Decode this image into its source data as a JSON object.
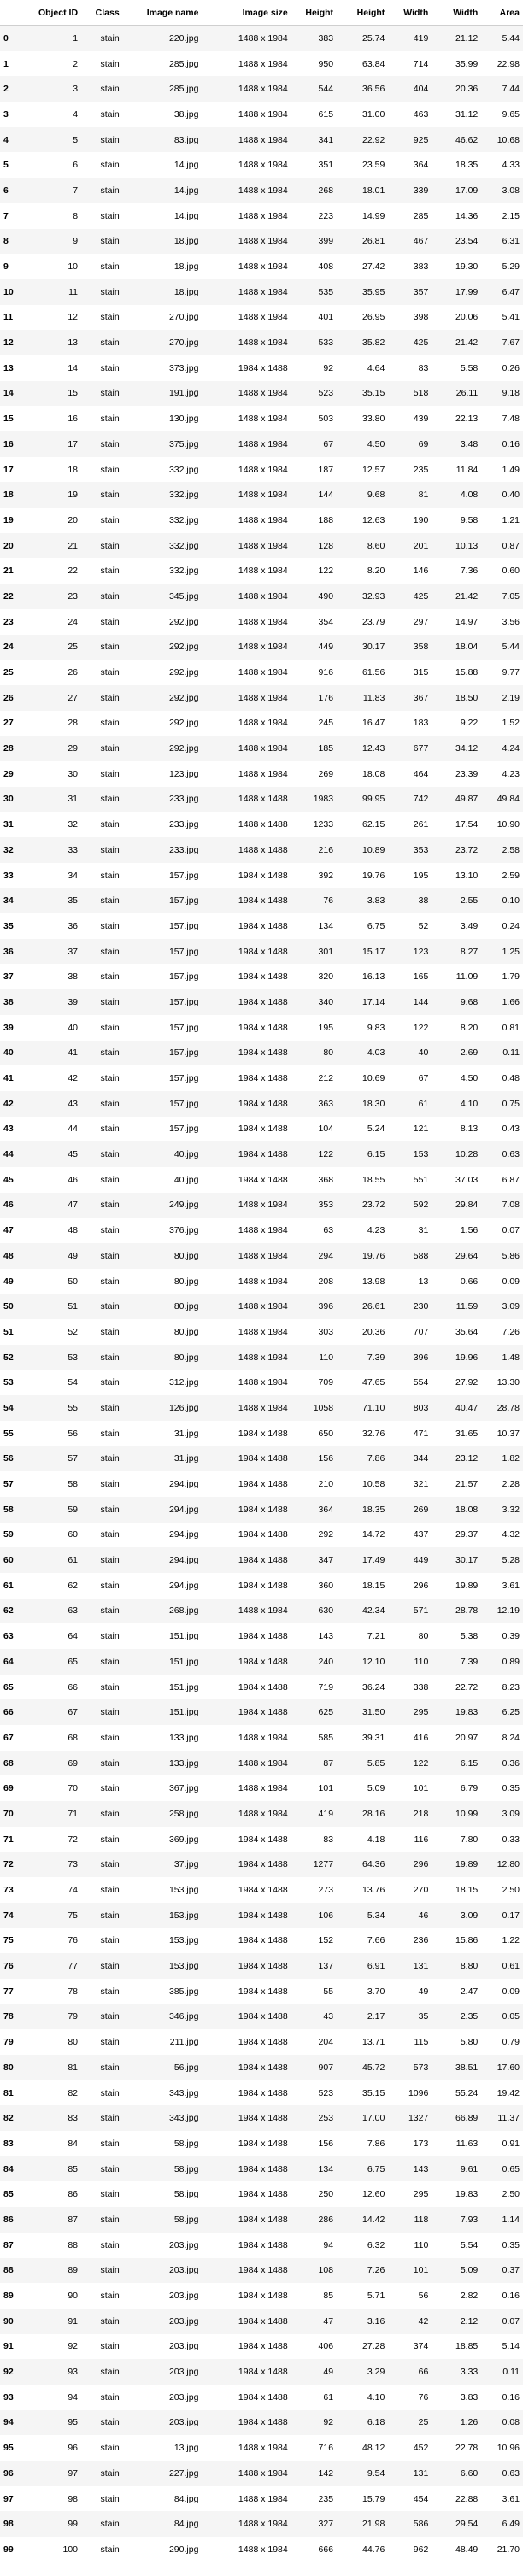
{
  "columns": [
    "",
    "Object ID",
    "Class",
    "Image name",
    "Image size",
    "Height",
    "Height",
    "Width",
    "Width",
    "Area"
  ],
  "rows": [
    [
      "0",
      "1",
      "stain",
      "220.jpg",
      "1488 x 1984",
      "383",
      "25.74",
      "419",
      "21.12",
      "5.44"
    ],
    [
      "1",
      "2",
      "stain",
      "285.jpg",
      "1488 x 1984",
      "950",
      "63.84",
      "714",
      "35.99",
      "22.98"
    ],
    [
      "2",
      "3",
      "stain",
      "285.jpg",
      "1488 x 1984",
      "544",
      "36.56",
      "404",
      "20.36",
      "7.44"
    ],
    [
      "3",
      "4",
      "stain",
      "38.jpg",
      "1488 x 1984",
      "615",
      "31.00",
      "463",
      "31.12",
      "9.65"
    ],
    [
      "4",
      "5",
      "stain",
      "83.jpg",
      "1488 x 1984",
      "341",
      "22.92",
      "925",
      "46.62",
      "10.68"
    ],
    [
      "5",
      "6",
      "stain",
      "14.jpg",
      "1488 x 1984",
      "351",
      "23.59",
      "364",
      "18.35",
      "4.33"
    ],
    [
      "6",
      "7",
      "stain",
      "14.jpg",
      "1488 x 1984",
      "268",
      "18.01",
      "339",
      "17.09",
      "3.08"
    ],
    [
      "7",
      "8",
      "stain",
      "14.jpg",
      "1488 x 1984",
      "223",
      "14.99",
      "285",
      "14.36",
      "2.15"
    ],
    [
      "8",
      "9",
      "stain",
      "18.jpg",
      "1488 x 1984",
      "399",
      "26.81",
      "467",
      "23.54",
      "6.31"
    ],
    [
      "9",
      "10",
      "stain",
      "18.jpg",
      "1488 x 1984",
      "408",
      "27.42",
      "383",
      "19.30",
      "5.29"
    ],
    [
      "10",
      "11",
      "stain",
      "18.jpg",
      "1488 x 1984",
      "535",
      "35.95",
      "357",
      "17.99",
      "6.47"
    ],
    [
      "11",
      "12",
      "stain",
      "270.jpg",
      "1488 x 1984",
      "401",
      "26.95",
      "398",
      "20.06",
      "5.41"
    ],
    [
      "12",
      "13",
      "stain",
      "270.jpg",
      "1488 x 1984",
      "533",
      "35.82",
      "425",
      "21.42",
      "7.67"
    ],
    [
      "13",
      "14",
      "stain",
      "373.jpg",
      "1984 x 1488",
      "92",
      "4.64",
      "83",
      "5.58",
      "0.26"
    ],
    [
      "14",
      "15",
      "stain",
      "191.jpg",
      "1488 x 1984",
      "523",
      "35.15",
      "518",
      "26.11",
      "9.18"
    ],
    [
      "15",
      "16",
      "stain",
      "130.jpg",
      "1488 x 1984",
      "503",
      "33.80",
      "439",
      "22.13",
      "7.48"
    ],
    [
      "16",
      "17",
      "stain",
      "375.jpg",
      "1488 x 1984",
      "67",
      "4.50",
      "69",
      "3.48",
      "0.16"
    ],
    [
      "17",
      "18",
      "stain",
      "332.jpg",
      "1488 x 1984",
      "187",
      "12.57",
      "235",
      "11.84",
      "1.49"
    ],
    [
      "18",
      "19",
      "stain",
      "332.jpg",
      "1488 x 1984",
      "144",
      "9.68",
      "81",
      "4.08",
      "0.40"
    ],
    [
      "19",
      "20",
      "stain",
      "332.jpg",
      "1488 x 1984",
      "188",
      "12.63",
      "190",
      "9.58",
      "1.21"
    ],
    [
      "20",
      "21",
      "stain",
      "332.jpg",
      "1488 x 1984",
      "128",
      "8.60",
      "201",
      "10.13",
      "0.87"
    ],
    [
      "21",
      "22",
      "stain",
      "332.jpg",
      "1488 x 1984",
      "122",
      "8.20",
      "146",
      "7.36",
      "0.60"
    ],
    [
      "22",
      "23",
      "stain",
      "345.jpg",
      "1488 x 1984",
      "490",
      "32.93",
      "425",
      "21.42",
      "7.05"
    ],
    [
      "23",
      "24",
      "stain",
      "292.jpg",
      "1488 x 1984",
      "354",
      "23.79",
      "297",
      "14.97",
      "3.56"
    ],
    [
      "24",
      "25",
      "stain",
      "292.jpg",
      "1488 x 1984",
      "449",
      "30.17",
      "358",
      "18.04",
      "5.44"
    ],
    [
      "25",
      "26",
      "stain",
      "292.jpg",
      "1488 x 1984",
      "916",
      "61.56",
      "315",
      "15.88",
      "9.77"
    ],
    [
      "26",
      "27",
      "stain",
      "292.jpg",
      "1488 x 1984",
      "176",
      "11.83",
      "367",
      "18.50",
      "2.19"
    ],
    [
      "27",
      "28",
      "stain",
      "292.jpg",
      "1488 x 1984",
      "245",
      "16.47",
      "183",
      "9.22",
      "1.52"
    ],
    [
      "28",
      "29",
      "stain",
      "292.jpg",
      "1488 x 1984",
      "185",
      "12.43",
      "677",
      "34.12",
      "4.24"
    ],
    [
      "29",
      "30",
      "stain",
      "123.jpg",
      "1488 x 1984",
      "269",
      "18.08",
      "464",
      "23.39",
      "4.23"
    ],
    [
      "30",
      "31",
      "stain",
      "233.jpg",
      "1488 x 1488",
      "1983",
      "99.95",
      "742",
      "49.87",
      "49.84"
    ],
    [
      "31",
      "32",
      "stain",
      "233.jpg",
      "1488 x 1488",
      "1233",
      "62.15",
      "261",
      "17.54",
      "10.90"
    ],
    [
      "32",
      "33",
      "stain",
      "233.jpg",
      "1488 x 1488",
      "216",
      "10.89",
      "353",
      "23.72",
      "2.58"
    ],
    [
      "33",
      "34",
      "stain",
      "157.jpg",
      "1984 x 1488",
      "392",
      "19.76",
      "195",
      "13.10",
      "2.59"
    ],
    [
      "34",
      "35",
      "stain",
      "157.jpg",
      "1984 x 1488",
      "76",
      "3.83",
      "38",
      "2.55",
      "0.10"
    ],
    [
      "35",
      "36",
      "stain",
      "157.jpg",
      "1984 x 1488",
      "134",
      "6.75",
      "52",
      "3.49",
      "0.24"
    ],
    [
      "36",
      "37",
      "stain",
      "157.jpg",
      "1984 x 1488",
      "301",
      "15.17",
      "123",
      "8.27",
      "1.25"
    ],
    [
      "37",
      "38",
      "stain",
      "157.jpg",
      "1984 x 1488",
      "320",
      "16.13",
      "165",
      "11.09",
      "1.79"
    ],
    [
      "38",
      "39",
      "stain",
      "157.jpg",
      "1984 x 1488",
      "340",
      "17.14",
      "144",
      "9.68",
      "1.66"
    ],
    [
      "39",
      "40",
      "stain",
      "157.jpg",
      "1984 x 1488",
      "195",
      "9.83",
      "122",
      "8.20",
      "0.81"
    ],
    [
      "40",
      "41",
      "stain",
      "157.jpg",
      "1984 x 1488",
      "80",
      "4.03",
      "40",
      "2.69",
      "0.11"
    ],
    [
      "41",
      "42",
      "stain",
      "157.jpg",
      "1984 x 1488",
      "212",
      "10.69",
      "67",
      "4.50",
      "0.48"
    ],
    [
      "42",
      "43",
      "stain",
      "157.jpg",
      "1984 x 1488",
      "363",
      "18.30",
      "61",
      "4.10",
      "0.75"
    ],
    [
      "43",
      "44",
      "stain",
      "157.jpg",
      "1984 x 1488",
      "104",
      "5.24",
      "121",
      "8.13",
      "0.43"
    ],
    [
      "44",
      "45",
      "stain",
      "40.jpg",
      "1984 x 1488",
      "122",
      "6.15",
      "153",
      "10.28",
      "0.63"
    ],
    [
      "45",
      "46",
      "stain",
      "40.jpg",
      "1984 x 1488",
      "368",
      "18.55",
      "551",
      "37.03",
      "6.87"
    ],
    [
      "46",
      "47",
      "stain",
      "249.jpg",
      "1488 x 1984",
      "353",
      "23.72",
      "592",
      "29.84",
      "7.08"
    ],
    [
      "47",
      "48",
      "stain",
      "376.jpg",
      "1488 x 1984",
      "63",
      "4.23",
      "31",
      "1.56",
      "0.07"
    ],
    [
      "48",
      "49",
      "stain",
      "80.jpg",
      "1488 x 1984",
      "294",
      "19.76",
      "588",
      "29.64",
      "5.86"
    ],
    [
      "49",
      "50",
      "stain",
      "80.jpg",
      "1488 x 1984",
      "208",
      "13.98",
      "13",
      "0.66",
      "0.09"
    ],
    [
      "50",
      "51",
      "stain",
      "80.jpg",
      "1488 x 1984",
      "396",
      "26.61",
      "230",
      "11.59",
      "3.09"
    ],
    [
      "51",
      "52",
      "stain",
      "80.jpg",
      "1488 x 1984",
      "303",
      "20.36",
      "707",
      "35.64",
      "7.26"
    ],
    [
      "52",
      "53",
      "stain",
      "80.jpg",
      "1488 x 1984",
      "110",
      "7.39",
      "396",
      "19.96",
      "1.48"
    ],
    [
      "53",
      "54",
      "stain",
      "312.jpg",
      "1488 x 1984",
      "709",
      "47.65",
      "554",
      "27.92",
      "13.30"
    ],
    [
      "54",
      "55",
      "stain",
      "126.jpg",
      "1488 x 1984",
      "1058",
      "71.10",
      "803",
      "40.47",
      "28.78"
    ],
    [
      "55",
      "56",
      "stain",
      "31.jpg",
      "1984 x 1488",
      "650",
      "32.76",
      "471",
      "31.65",
      "10.37"
    ],
    [
      "56",
      "57",
      "stain",
      "31.jpg",
      "1984 x 1488",
      "156",
      "7.86",
      "344",
      "23.12",
      "1.82"
    ],
    [
      "57",
      "58",
      "stain",
      "294.jpg",
      "1984 x 1488",
      "210",
      "10.58",
      "321",
      "21.57",
      "2.28"
    ],
    [
      "58",
      "59",
      "stain",
      "294.jpg",
      "1984 x 1488",
      "364",
      "18.35",
      "269",
      "18.08",
      "3.32"
    ],
    [
      "59",
      "60",
      "stain",
      "294.jpg",
      "1984 x 1488",
      "292",
      "14.72",
      "437",
      "29.37",
      "4.32"
    ],
    [
      "60",
      "61",
      "stain",
      "294.jpg",
      "1984 x 1488",
      "347",
      "17.49",
      "449",
      "30.17",
      "5.28"
    ],
    [
      "61",
      "62",
      "stain",
      "294.jpg",
      "1984 x 1488",
      "360",
      "18.15",
      "296",
      "19.89",
      "3.61"
    ],
    [
      "62",
      "63",
      "stain",
      "268.jpg",
      "1488 x 1984",
      "630",
      "42.34",
      "571",
      "28.78",
      "12.19"
    ],
    [
      "63",
      "64",
      "stain",
      "151.jpg",
      "1984 x 1488",
      "143",
      "7.21",
      "80",
      "5.38",
      "0.39"
    ],
    [
      "64",
      "65",
      "stain",
      "151.jpg",
      "1984 x 1488",
      "240",
      "12.10",
      "110",
      "7.39",
      "0.89"
    ],
    [
      "65",
      "66",
      "stain",
      "151.jpg",
      "1984 x 1488",
      "719",
      "36.24",
      "338",
      "22.72",
      "8.23"
    ],
    [
      "66",
      "67",
      "stain",
      "151.jpg",
      "1984 x 1488",
      "625",
      "31.50",
      "295",
      "19.83",
      "6.25"
    ],
    [
      "67",
      "68",
      "stain",
      "133.jpg",
      "1488 x 1984",
      "585",
      "39.31",
      "416",
      "20.97",
      "8.24"
    ],
    [
      "68",
      "69",
      "stain",
      "133.jpg",
      "1488 x 1984",
      "87",
      "5.85",
      "122",
      "6.15",
      "0.36"
    ],
    [
      "69",
      "70",
      "stain",
      "367.jpg",
      "1488 x 1984",
      "101",
      "5.09",
      "101",
      "6.79",
      "0.35"
    ],
    [
      "70",
      "71",
      "stain",
      "258.jpg",
      "1488 x 1984",
      "419",
      "28.16",
      "218",
      "10.99",
      "3.09"
    ],
    [
      "71",
      "72",
      "stain",
      "369.jpg",
      "1984 x 1488",
      "83",
      "4.18",
      "116",
      "7.80",
      "0.33"
    ],
    [
      "72",
      "73",
      "stain",
      "37.jpg",
      "1984 x 1488",
      "1277",
      "64.36",
      "296",
      "19.89",
      "12.80"
    ],
    [
      "73",
      "74",
      "stain",
      "153.jpg",
      "1984 x 1488",
      "273",
      "13.76",
      "270",
      "18.15",
      "2.50"
    ],
    [
      "74",
      "75",
      "stain",
      "153.jpg",
      "1984 x 1488",
      "106",
      "5.34",
      "46",
      "3.09",
      "0.17"
    ],
    [
      "75",
      "76",
      "stain",
      "153.jpg",
      "1984 x 1488",
      "152",
      "7.66",
      "236",
      "15.86",
      "1.22"
    ],
    [
      "76",
      "77",
      "stain",
      "153.jpg",
      "1984 x 1488",
      "137",
      "6.91",
      "131",
      "8.80",
      "0.61"
    ],
    [
      "77",
      "78",
      "stain",
      "385.jpg",
      "1984 x 1488",
      "55",
      "3.70",
      "49",
      "2.47",
      "0.09"
    ],
    [
      "78",
      "79",
      "stain",
      "346.jpg",
      "1984 x 1488",
      "43",
      "2.17",
      "35",
      "2.35",
      "0.05"
    ],
    [
      "79",
      "80",
      "stain",
      "211.jpg",
      "1984 x 1488",
      "204",
      "13.71",
      "115",
      "5.80",
      "0.79"
    ],
    [
      "80",
      "81",
      "stain",
      "56.jpg",
      "1984 x 1488",
      "907",
      "45.72",
      "573",
      "38.51",
      "17.60"
    ],
    [
      "81",
      "82",
      "stain",
      "343.jpg",
      "1984 x 1488",
      "523",
      "35.15",
      "1096",
      "55.24",
      "19.42"
    ],
    [
      "82",
      "83",
      "stain",
      "343.jpg",
      "1984 x 1488",
      "253",
      "17.00",
      "1327",
      "66.89",
      "11.37"
    ],
    [
      "83",
      "84",
      "stain",
      "58.jpg",
      "1984 x 1488",
      "156",
      "7.86",
      "173",
      "11.63",
      "0.91"
    ],
    [
      "84",
      "85",
      "stain",
      "58.jpg",
      "1984 x 1488",
      "134",
      "6.75",
      "143",
      "9.61",
      "0.65"
    ],
    [
      "85",
      "86",
      "stain",
      "58.jpg",
      "1984 x 1488",
      "250",
      "12.60",
      "295",
      "19.83",
      "2.50"
    ],
    [
      "86",
      "87",
      "stain",
      "58.jpg",
      "1984 x 1488",
      "286",
      "14.42",
      "118",
      "7.93",
      "1.14"
    ],
    [
      "87",
      "88",
      "stain",
      "203.jpg",
      "1984 x 1488",
      "94",
      "6.32",
      "110",
      "5.54",
      "0.35"
    ],
    [
      "88",
      "89",
      "stain",
      "203.jpg",
      "1984 x 1488",
      "108",
      "7.26",
      "101",
      "5.09",
      "0.37"
    ],
    [
      "89",
      "90",
      "stain",
      "203.jpg",
      "1984 x 1488",
      "85",
      "5.71",
      "56",
      "2.82",
      "0.16"
    ],
    [
      "90",
      "91",
      "stain",
      "203.jpg",
      "1984 x 1488",
      "47",
      "3.16",
      "42",
      "2.12",
      "0.07"
    ],
    [
      "91",
      "92",
      "stain",
      "203.jpg",
      "1984 x 1488",
      "406",
      "27.28",
      "374",
      "18.85",
      "5.14"
    ],
    [
      "92",
      "93",
      "stain",
      "203.jpg",
      "1984 x 1488",
      "49",
      "3.29",
      "66",
      "3.33",
      "0.11"
    ],
    [
      "93",
      "94",
      "stain",
      "203.jpg",
      "1984 x 1488",
      "61",
      "4.10",
      "76",
      "3.83",
      "0.16"
    ],
    [
      "94",
      "95",
      "stain",
      "203.jpg",
      "1984 x 1488",
      "92",
      "6.18",
      "25",
      "1.26",
      "0.08"
    ],
    [
      "95",
      "96",
      "stain",
      "13.jpg",
      "1488 x 1984",
      "716",
      "48.12",
      "452",
      "22.78",
      "10.96"
    ],
    [
      "96",
      "97",
      "stain",
      "227.jpg",
      "1488 x 1984",
      "142",
      "9.54",
      "131",
      "6.60",
      "0.63"
    ],
    [
      "97",
      "98",
      "stain",
      "84.jpg",
      "1488 x 1984",
      "235",
      "15.79",
      "454",
      "22.88",
      "3.61"
    ],
    [
      "98",
      "99",
      "stain",
      "84.jpg",
      "1488 x 1984",
      "327",
      "21.98",
      "586",
      "29.54",
      "6.49"
    ],
    [
      "99",
      "100",
      "stain",
      "290.jpg",
      "1488 x 1984",
      "666",
      "44.76",
      "962",
      "48.49",
      "21.70"
    ]
  ]
}
